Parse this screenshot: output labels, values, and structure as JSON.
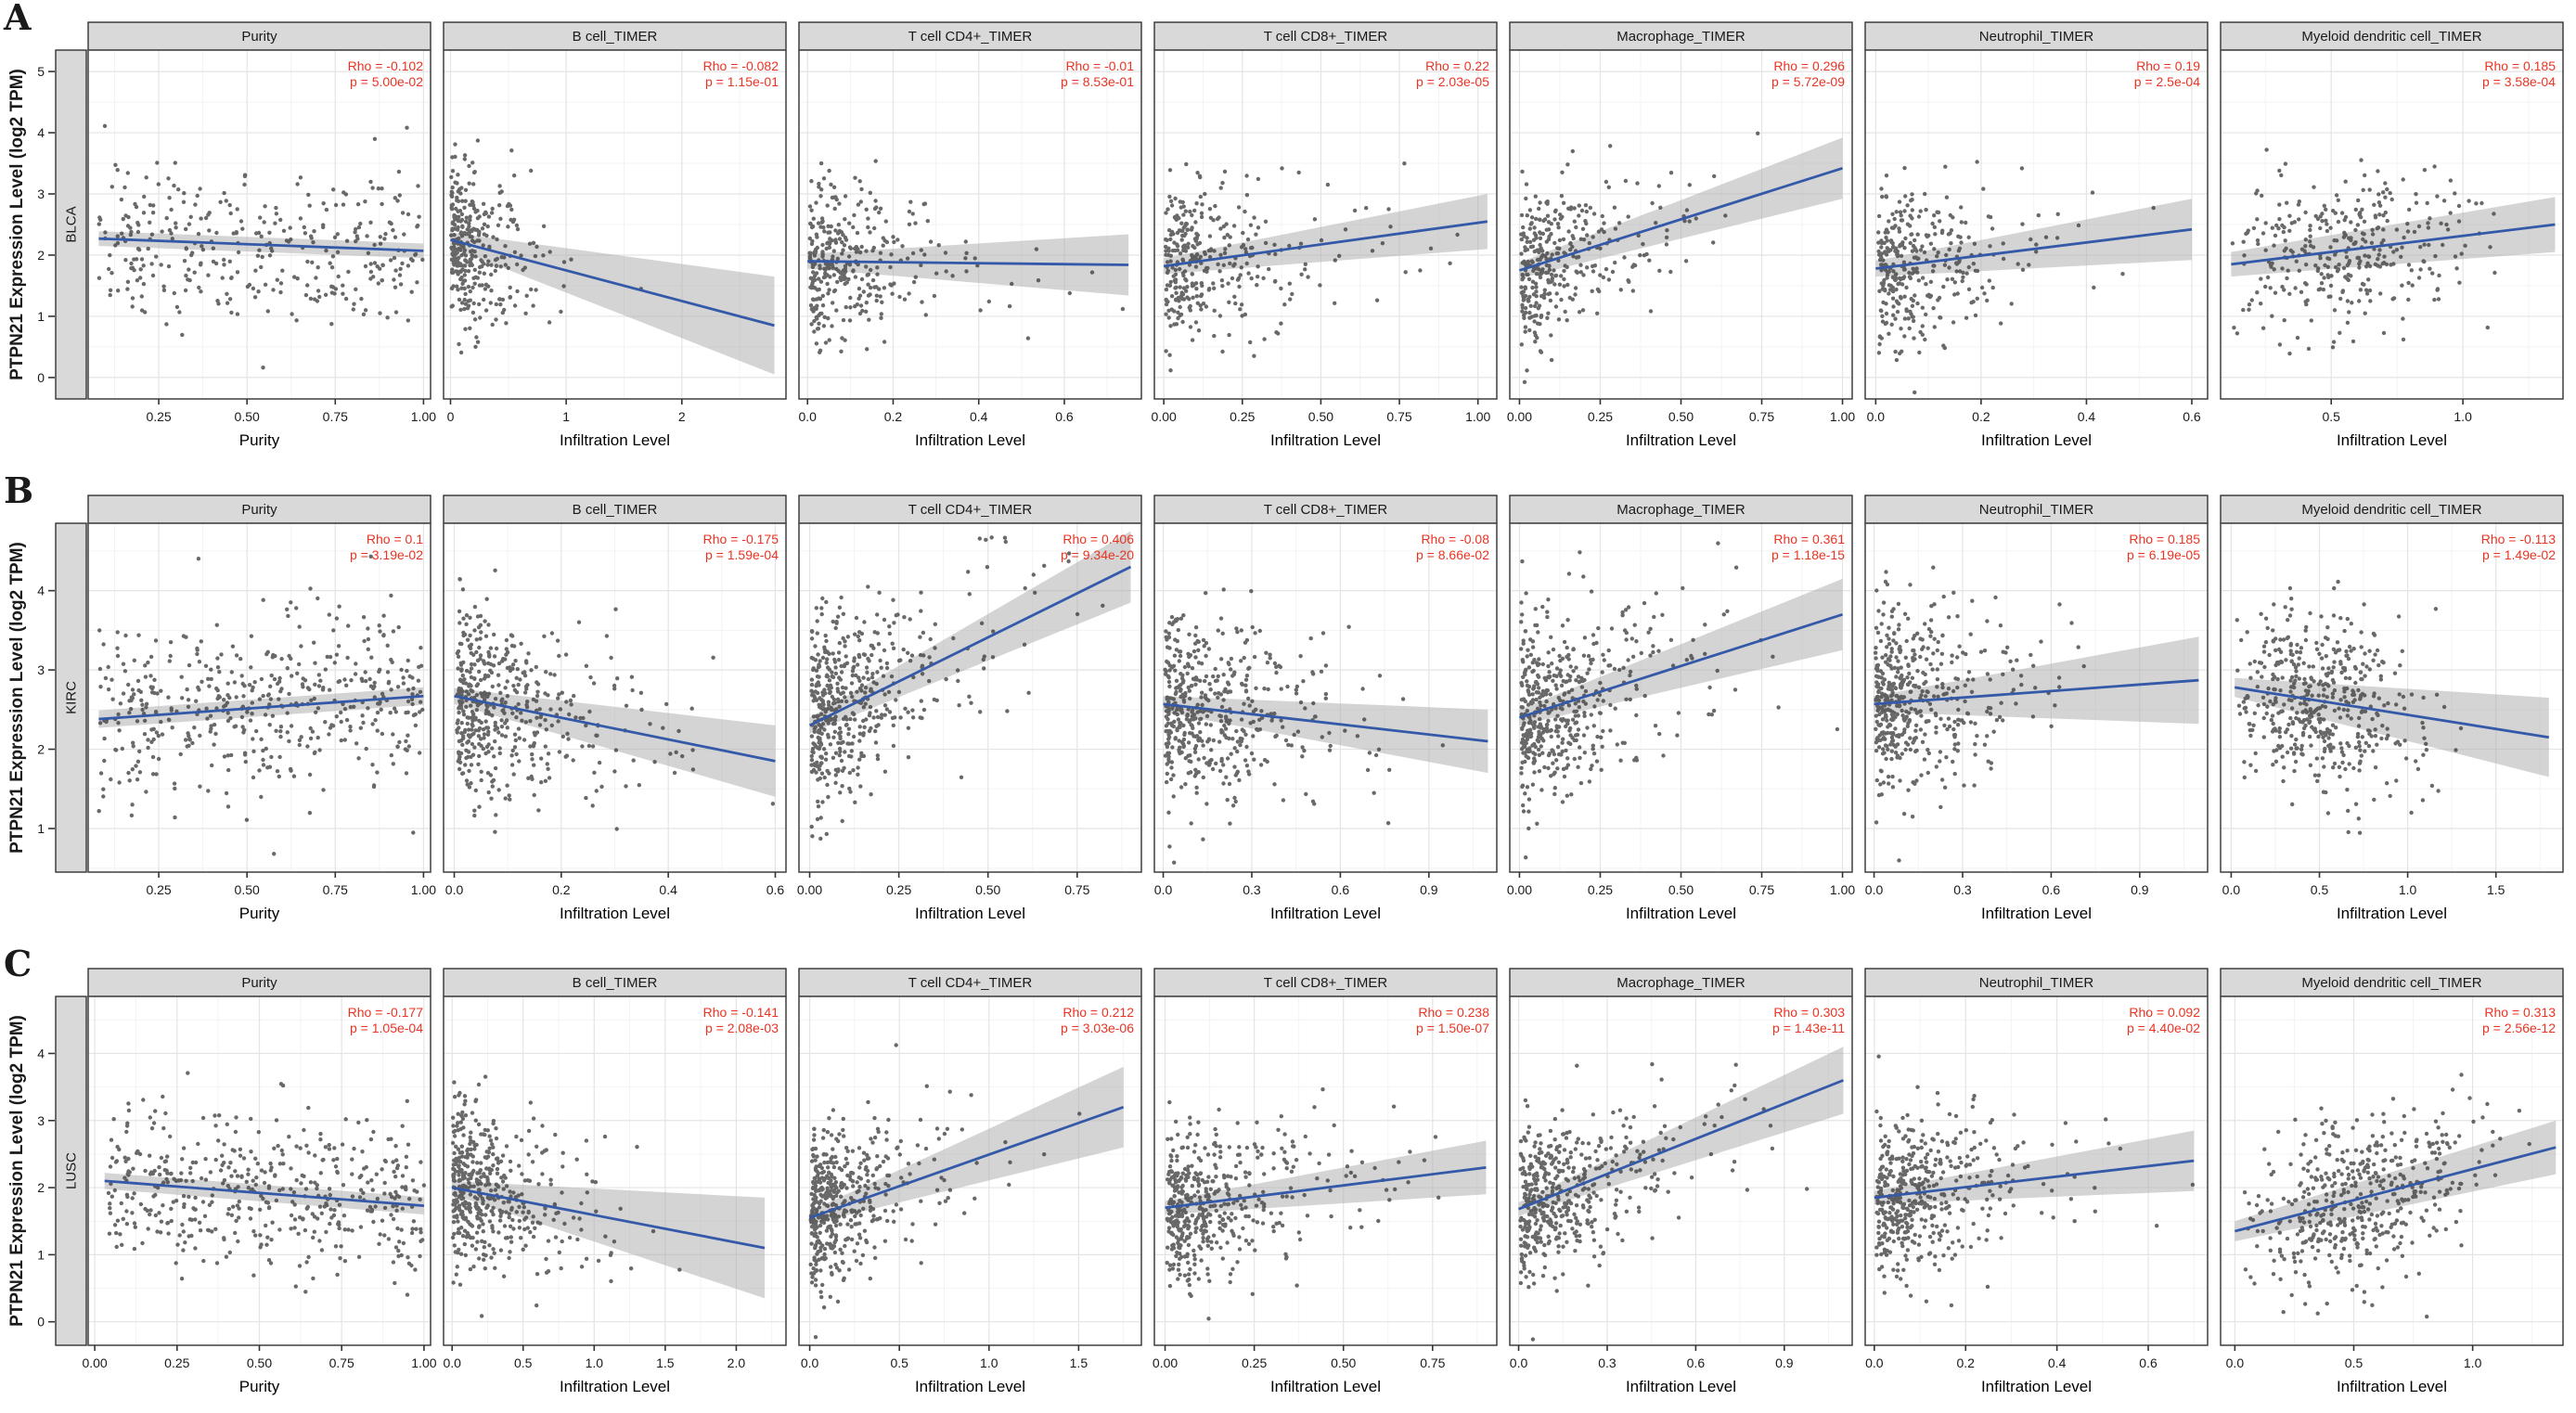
{
  "figure": {
    "y_axis_label": "PTPN21 Expression Level (log2 TPM)",
    "colors": {
      "header_bg": "#d9d9d9",
      "strip_bg": "#d9d9d9",
      "panel_border": "#4a4a4a",
      "header_border": "#333333",
      "grid_major": "#e4e4e4",
      "grid_minor": "#f3f3f3",
      "point": "#3f3f3f",
      "trend_line": "#3459a8",
      "ci_band": "#a9a9a9",
      "annotation_red": "#ea3423",
      "text_dark": "#1a1a1a"
    }
  },
  "chart_data": {
    "type": "scatter",
    "description_visible_text_only": "TIMER immune infiltration scatter panels with Spearman Rho and p annotations",
    "shared_y_axis_label": "PTPN21 Expression Level (log2 TPM)",
    "rows": [
      {
        "letter": "A",
        "cancer": "BLCA",
        "ylim": [
          -0.35,
          5.35
        ],
        "yticks": [
          0,
          1,
          2,
          3,
          4,
          5
        ],
        "ysd": 0.62,
        "n": 340,
        "panels": [
          {
            "title": "Purity",
            "xlabel": "Purity",
            "rho": "Rho = -0.102",
            "p": "p = 5.00e-02",
            "xlim": [
              0.05,
              1.02
            ],
            "xtick_vals": [
              0.25,
              0.5,
              0.75,
              1.0
            ],
            "xtick_labels": [
              "0.25",
              "0.50",
              "0.75",
              "1.00"
            ],
            "trend": {
              "x0": 0.08,
              "y0": 2.27,
              "x1": 1.0,
              "y1": 2.07,
              "c0": 0.12,
              "c1": 0.12
            },
            "xdist": {
              "type": "uniform",
              "min": 0.08,
              "max": 1.0
            },
            "seed": 11
          },
          {
            "title": "B cell_TIMER",
            "xlabel": "Infiltration Level",
            "rho": "Rho = -0.082",
            "p": "p = 1.15e-01",
            "xlim": [
              -0.06,
              2.9
            ],
            "xtick_vals": [
              0,
              1,
              2
            ],
            "xtick_labels": [
              "0",
              "1",
              "2"
            ],
            "trend": {
              "x0": 0.0,
              "y0": 2.25,
              "x1": 2.8,
              "y1": 0.85,
              "c0": 0.12,
              "c1": 0.8
            },
            "xdist": {
              "type": "exp",
              "min": 0.005,
              "scale": 0.22,
              "max": 2.8
            },
            "seed": 12
          },
          {
            "title": "T cell CD4+_TIMER",
            "xlabel": "Infiltration Level",
            "rho": "Rho = -0.01",
            "p": "p = 8.53e-01",
            "xlim": [
              -0.02,
              0.78
            ],
            "xtick_vals": [
              0,
              0.2,
              0.4,
              0.6
            ],
            "xtick_labels": [
              "0.0",
              "0.2",
              "0.4",
              "0.6"
            ],
            "trend": {
              "x0": 0.0,
              "y0": 1.9,
              "x1": 0.75,
              "y1": 1.84,
              "c0": 0.12,
              "c1": 0.5
            },
            "xdist": {
              "type": "exp",
              "min": 0.005,
              "scale": 0.11,
              "max": 0.75
            },
            "seed": 13
          },
          {
            "title": "T cell CD8+_TIMER",
            "xlabel": "Infiltration Level",
            "rho": "Rho = 0.22",
            "p": "p = 2.03e-05",
            "xlim": [
              -0.03,
              1.06
            ],
            "xtick_vals": [
              0,
              0.25,
              0.5,
              0.75,
              1.0
            ],
            "xtick_labels": [
              "0.00",
              "0.25",
              "0.50",
              "0.75",
              "1.00"
            ],
            "trend": {
              "x0": 0.0,
              "y0": 1.82,
              "x1": 1.03,
              "y1": 2.55,
              "c0": 0.13,
              "c1": 0.45
            },
            "xdist": {
              "type": "exp",
              "min": 0.005,
              "scale": 0.16,
              "max": 1.03
            },
            "seed": 14
          },
          {
            "title": "Macrophage_TIMER",
            "xlabel": "Infiltration Level",
            "rho": "Rho = 0.296",
            "p": "p = 5.72e-09",
            "xlim": [
              -0.03,
              1.03
            ],
            "xtick_vals": [
              0,
              0.25,
              0.5,
              0.75,
              1.0
            ],
            "xtick_labels": [
              "0.00",
              "0.25",
              "0.50",
              "0.75",
              "1.00"
            ],
            "trend": {
              "x0": 0.0,
              "y0": 1.75,
              "x1": 1.0,
              "y1": 3.42,
              "c0": 0.13,
              "c1": 0.5
            },
            "xdist": {
              "type": "exp",
              "min": 0.005,
              "scale": 0.15,
              "max": 1.0
            },
            "seed": 15
          },
          {
            "title": "Neutrophil_TIMER",
            "xlabel": "Infiltration Level",
            "rho": "Rho = 0.19",
            "p": "p = 2.5e-04",
            "xlim": [
              -0.02,
              0.63
            ],
            "xtick_vals": [
              0,
              0.2,
              0.4,
              0.6
            ],
            "xtick_labels": [
              "0.0",
              "0.2",
              "0.4",
              "0.6"
            ],
            "trend": {
              "x0": 0.0,
              "y0": 1.78,
              "x1": 0.6,
              "y1": 2.42,
              "c0": 0.13,
              "c1": 0.5
            },
            "xdist": {
              "type": "exp",
              "min": 0.005,
              "scale": 0.09,
              "max": 0.6
            },
            "seed": 16
          },
          {
            "title": "Myeloid dendritic cell_TIMER",
            "xlabel": "Infiltration Level",
            "rho": "Rho = 0.185",
            "p": "p = 3.58e-04",
            "xlim": [
              0.08,
              1.38
            ],
            "xtick_vals": [
              0.5,
              1.0
            ],
            "xtick_labels": [
              "0.5",
              "1.0"
            ],
            "trend": {
              "x0": 0.12,
              "y0": 1.85,
              "x1": 1.35,
              "y1": 2.5,
              "c0": 0.2,
              "c1": 0.45
            },
            "xdist": {
              "type": "normal",
              "c": 0.55,
              "sd": 0.23,
              "min": 0.12,
              "max": 1.35
            },
            "seed": 17
          }
        ]
      },
      {
        "letter": "B",
        "cancer": "KIRC",
        "ylim": [
          0.45,
          4.85
        ],
        "yticks": [
          1,
          2,
          3,
          4
        ],
        "ysd": 0.58,
        "n": 480,
        "panels": [
          {
            "title": "Purity",
            "xlabel": "Purity",
            "rho": "Rho = 0.1",
            "p": "p = 3.19e-02",
            "xlim": [
              0.05,
              1.02
            ],
            "xtick_vals": [
              0.25,
              0.5,
              0.75,
              1.0
            ],
            "xtick_labels": [
              "0.25",
              "0.50",
              "0.75",
              "1.00"
            ],
            "trend": {
              "x0": 0.08,
              "y0": 2.38,
              "x1": 1.0,
              "y1": 2.67,
              "c0": 0.11,
              "c1": 0.11
            },
            "xdist": {
              "type": "uniform",
              "min": 0.08,
              "max": 1.0
            },
            "seed": 21
          },
          {
            "title": "B cell_TIMER",
            "xlabel": "Infiltration Level",
            "rho": "Rho = -0.175",
            "p": "p = 1.59e-04",
            "xlim": [
              -0.02,
              0.62
            ],
            "xtick_vals": [
              0,
              0.2,
              0.4,
              0.6
            ],
            "xtick_labels": [
              "0.0",
              "0.2",
              "0.4",
              "0.6"
            ],
            "trend": {
              "x0": 0.0,
              "y0": 2.67,
              "x1": 0.6,
              "y1": 1.85,
              "c0": 0.1,
              "c1": 0.45
            },
            "xdist": {
              "type": "exp",
              "min": 0.005,
              "scale": 0.1,
              "max": 0.6
            },
            "seed": 22
          },
          {
            "title": "T cell CD4+_TIMER",
            "xlabel": "Infiltration Level",
            "rho": "Rho = 0.406",
            "p": "p = 9.34e-20",
            "xlim": [
              -0.03,
              0.93
            ],
            "xtick_vals": [
              0,
              0.25,
              0.5,
              0.75
            ],
            "xtick_labels": [
              "0.00",
              "0.25",
              "0.50",
              "0.75"
            ],
            "trend": {
              "x0": 0.0,
              "y0": 2.3,
              "x1": 0.9,
              "y1": 4.3,
              "c0": 0.1,
              "c1": 0.45
            },
            "xdist": {
              "type": "exp",
              "min": 0.005,
              "scale": 0.13,
              "max": 0.9
            },
            "seed": 23
          },
          {
            "title": "T cell CD8+_TIMER",
            "xlabel": "Infiltration Level",
            "rho": "Rho = -0.08",
            "p": "p = 8.66e-02",
            "xlim": [
              -0.03,
              1.13
            ],
            "xtick_vals": [
              0,
              0.3,
              0.6,
              0.9
            ],
            "xtick_labels": [
              "0.0",
              "0.3",
              "0.6",
              "0.9"
            ],
            "trend": {
              "x0": 0.0,
              "y0": 2.57,
              "x1": 1.1,
              "y1": 2.1,
              "c0": 0.1,
              "c1": 0.4
            },
            "xdist": {
              "type": "exp",
              "min": 0.005,
              "scale": 0.18,
              "max": 1.1
            },
            "seed": 24
          },
          {
            "title": "Macrophage_TIMER",
            "xlabel": "Infiltration Level",
            "rho": "Rho = 0.361",
            "p": "p = 1.18e-15",
            "xlim": [
              -0.03,
              1.03
            ],
            "xtick_vals": [
              0,
              0.25,
              0.5,
              0.75,
              1.0
            ],
            "xtick_labels": [
              "0.00",
              "0.25",
              "0.50",
              "0.75",
              "1.00"
            ],
            "trend": {
              "x0": 0.0,
              "y0": 2.4,
              "x1": 1.0,
              "y1": 3.7,
              "c0": 0.1,
              "c1": 0.45
            },
            "xdist": {
              "type": "exp",
              "min": 0.005,
              "scale": 0.15,
              "max": 1.0
            },
            "seed": 25
          },
          {
            "title": "Neutrophil_TIMER",
            "xlabel": "Infiltration Level",
            "rho": "Rho = 0.185",
            "p": "p = 6.19e-05",
            "xlim": [
              -0.03,
              1.13
            ],
            "xtick_vals": [
              0,
              0.3,
              0.6,
              0.9
            ],
            "xtick_labels": [
              "0.0",
              "0.3",
              "0.6",
              "0.9"
            ],
            "trend": {
              "x0": 0.0,
              "y0": 2.57,
              "x1": 1.1,
              "y1": 2.87,
              "c0": 0.1,
              "c1": 0.55
            },
            "xdist": {
              "type": "exp",
              "min": 0.005,
              "scale": 0.15,
              "max": 1.1
            },
            "seed": 26
          },
          {
            "title": "Myeloid dendritic cell_TIMER",
            "xlabel": "Infiltration Level",
            "rho": "Rho = -0.113",
            "p": "p = 1.49e-02",
            "xlim": [
              -0.06,
              1.88
            ],
            "xtick_vals": [
              0,
              0.5,
              1.0,
              1.5
            ],
            "xtick_labels": [
              "0.0",
              "0.5",
              "1.0",
              "1.5"
            ],
            "trend": {
              "x0": 0.02,
              "y0": 2.78,
              "x1": 1.8,
              "y1": 2.15,
              "c0": 0.12,
              "c1": 0.5
            },
            "xdist": {
              "type": "normal",
              "c": 0.45,
              "sd": 0.3,
              "min": 0.03,
              "max": 1.8
            },
            "seed": 27
          }
        ]
      },
      {
        "letter": "C",
        "cancer": "LUSC",
        "ylim": [
          -0.35,
          4.85
        ],
        "yticks": [
          0,
          1,
          2,
          3,
          4
        ],
        "ysd": 0.58,
        "n": 470,
        "panels": [
          {
            "title": "Purity",
            "xlabel": "Purity",
            "rho": "Rho = -0.177",
            "p": "p = 1.05e-04",
            "xlim": [
              -0.02,
              1.02
            ],
            "xtick_vals": [
              0,
              0.25,
              0.5,
              0.75,
              1.0
            ],
            "xtick_labels": [
              "0.00",
              "0.25",
              "0.50",
              "0.75",
              "1.00"
            ],
            "trend": {
              "x0": 0.03,
              "y0": 2.1,
              "x1": 1.0,
              "y1": 1.73,
              "c0": 0.12,
              "c1": 0.13
            },
            "xdist": {
              "type": "uniform",
              "min": 0.04,
              "max": 1.0
            },
            "seed": 31
          },
          {
            "title": "B cell_TIMER",
            "xlabel": "Infiltration Level",
            "rho": "Rho = -0.141",
            "p": "p = 2.08e-03",
            "xlim": [
              -0.06,
              2.35
            ],
            "xtick_vals": [
              0,
              0.5,
              1.0,
              1.5,
              2.0
            ],
            "xtick_labels": [
              "0.0",
              "0.5",
              "1.0",
              "1.5",
              "2.0"
            ],
            "trend": {
              "x0": 0.0,
              "y0": 2.0,
              "x1": 2.2,
              "y1": 1.1,
              "c0": 0.1,
              "c1": 0.75
            },
            "xdist": {
              "type": "exp",
              "min": 0.005,
              "scale": 0.26,
              "max": 2.2
            },
            "seed": 32
          },
          {
            "title": "T cell CD4+_TIMER",
            "xlabel": "Infiltration Level",
            "rho": "Rho = 0.212",
            "p": "p = 3.03e-06",
            "xlim": [
              -0.06,
              1.85
            ],
            "xtick_vals": [
              0,
              0.5,
              1.0,
              1.5
            ],
            "xtick_labels": [
              "0.0",
              "0.5",
              "1.0",
              "1.5"
            ],
            "trend": {
              "x0": 0.0,
              "y0": 1.55,
              "x1": 1.75,
              "y1": 3.2,
              "c0": 0.1,
              "c1": 0.6
            },
            "xdist": {
              "type": "exp",
              "min": 0.005,
              "scale": 0.2,
              "max": 1.75
            },
            "seed": 33
          },
          {
            "title": "T cell CD8+_TIMER",
            "xlabel": "Infiltration Level",
            "rho": "Rho = 0.238",
            "p": "p = 1.50e-07",
            "xlim": [
              -0.03,
              0.93
            ],
            "xtick_vals": [
              0,
              0.25,
              0.5,
              0.75
            ],
            "xtick_labels": [
              "0.00",
              "0.25",
              "0.50",
              "0.75"
            ],
            "trend": {
              "x0": 0.0,
              "y0": 1.7,
              "x1": 0.9,
              "y1": 2.3,
              "c0": 0.1,
              "c1": 0.4
            },
            "xdist": {
              "type": "exp",
              "min": 0.005,
              "scale": 0.15,
              "max": 0.9
            },
            "seed": 34
          },
          {
            "title": "Macrophage_TIMER",
            "xlabel": "Infiltration Level",
            "rho": "Rho = 0.303",
            "p": "p = 1.43e-11",
            "xlim": [
              -0.03,
              1.13
            ],
            "xtick_vals": [
              0,
              0.3,
              0.6,
              0.9
            ],
            "xtick_labels": [
              "0.0",
              "0.3",
              "0.6",
              "0.9"
            ],
            "trend": {
              "x0": 0.0,
              "y0": 1.68,
              "x1": 1.1,
              "y1": 3.6,
              "c0": 0.1,
              "c1": 0.5
            },
            "xdist": {
              "type": "exp",
              "min": 0.005,
              "scale": 0.18,
              "max": 1.1
            },
            "seed": 35
          },
          {
            "title": "Neutrophil_TIMER",
            "xlabel": "Infiltration Level",
            "rho": "Rho = 0.092",
            "p": "p = 4.40e-02",
            "xlim": [
              -0.02,
              0.73
            ],
            "xtick_vals": [
              0,
              0.2,
              0.4,
              0.6
            ],
            "xtick_labels": [
              "0.0",
              "0.2",
              "0.4",
              "0.6"
            ],
            "trend": {
              "x0": 0.0,
              "y0": 1.85,
              "x1": 0.7,
              "y1": 2.4,
              "c0": 0.1,
              "c1": 0.45
            },
            "xdist": {
              "type": "exp",
              "min": 0.005,
              "scale": 0.11,
              "max": 0.7
            },
            "seed": 36
          },
          {
            "title": "Myeloid dendritic cell_TIMER",
            "xlabel": "Infiltration Level",
            "rho": "Rho = 0.313",
            "p": "p = 2.56e-12",
            "xlim": [
              -0.06,
              1.38
            ],
            "xtick_vals": [
              0,
              0.5,
              1.0
            ],
            "xtick_labels": [
              "0.0",
              "0.5",
              "1.0"
            ],
            "trend": {
              "x0": 0.0,
              "y0": 1.35,
              "x1": 1.35,
              "y1": 2.6,
              "c0": 0.15,
              "c1": 0.4
            },
            "xdist": {
              "type": "normal",
              "c": 0.5,
              "sd": 0.26,
              "min": 0.04,
              "max": 1.35
            },
            "seed": 37
          }
        ]
      }
    ]
  }
}
